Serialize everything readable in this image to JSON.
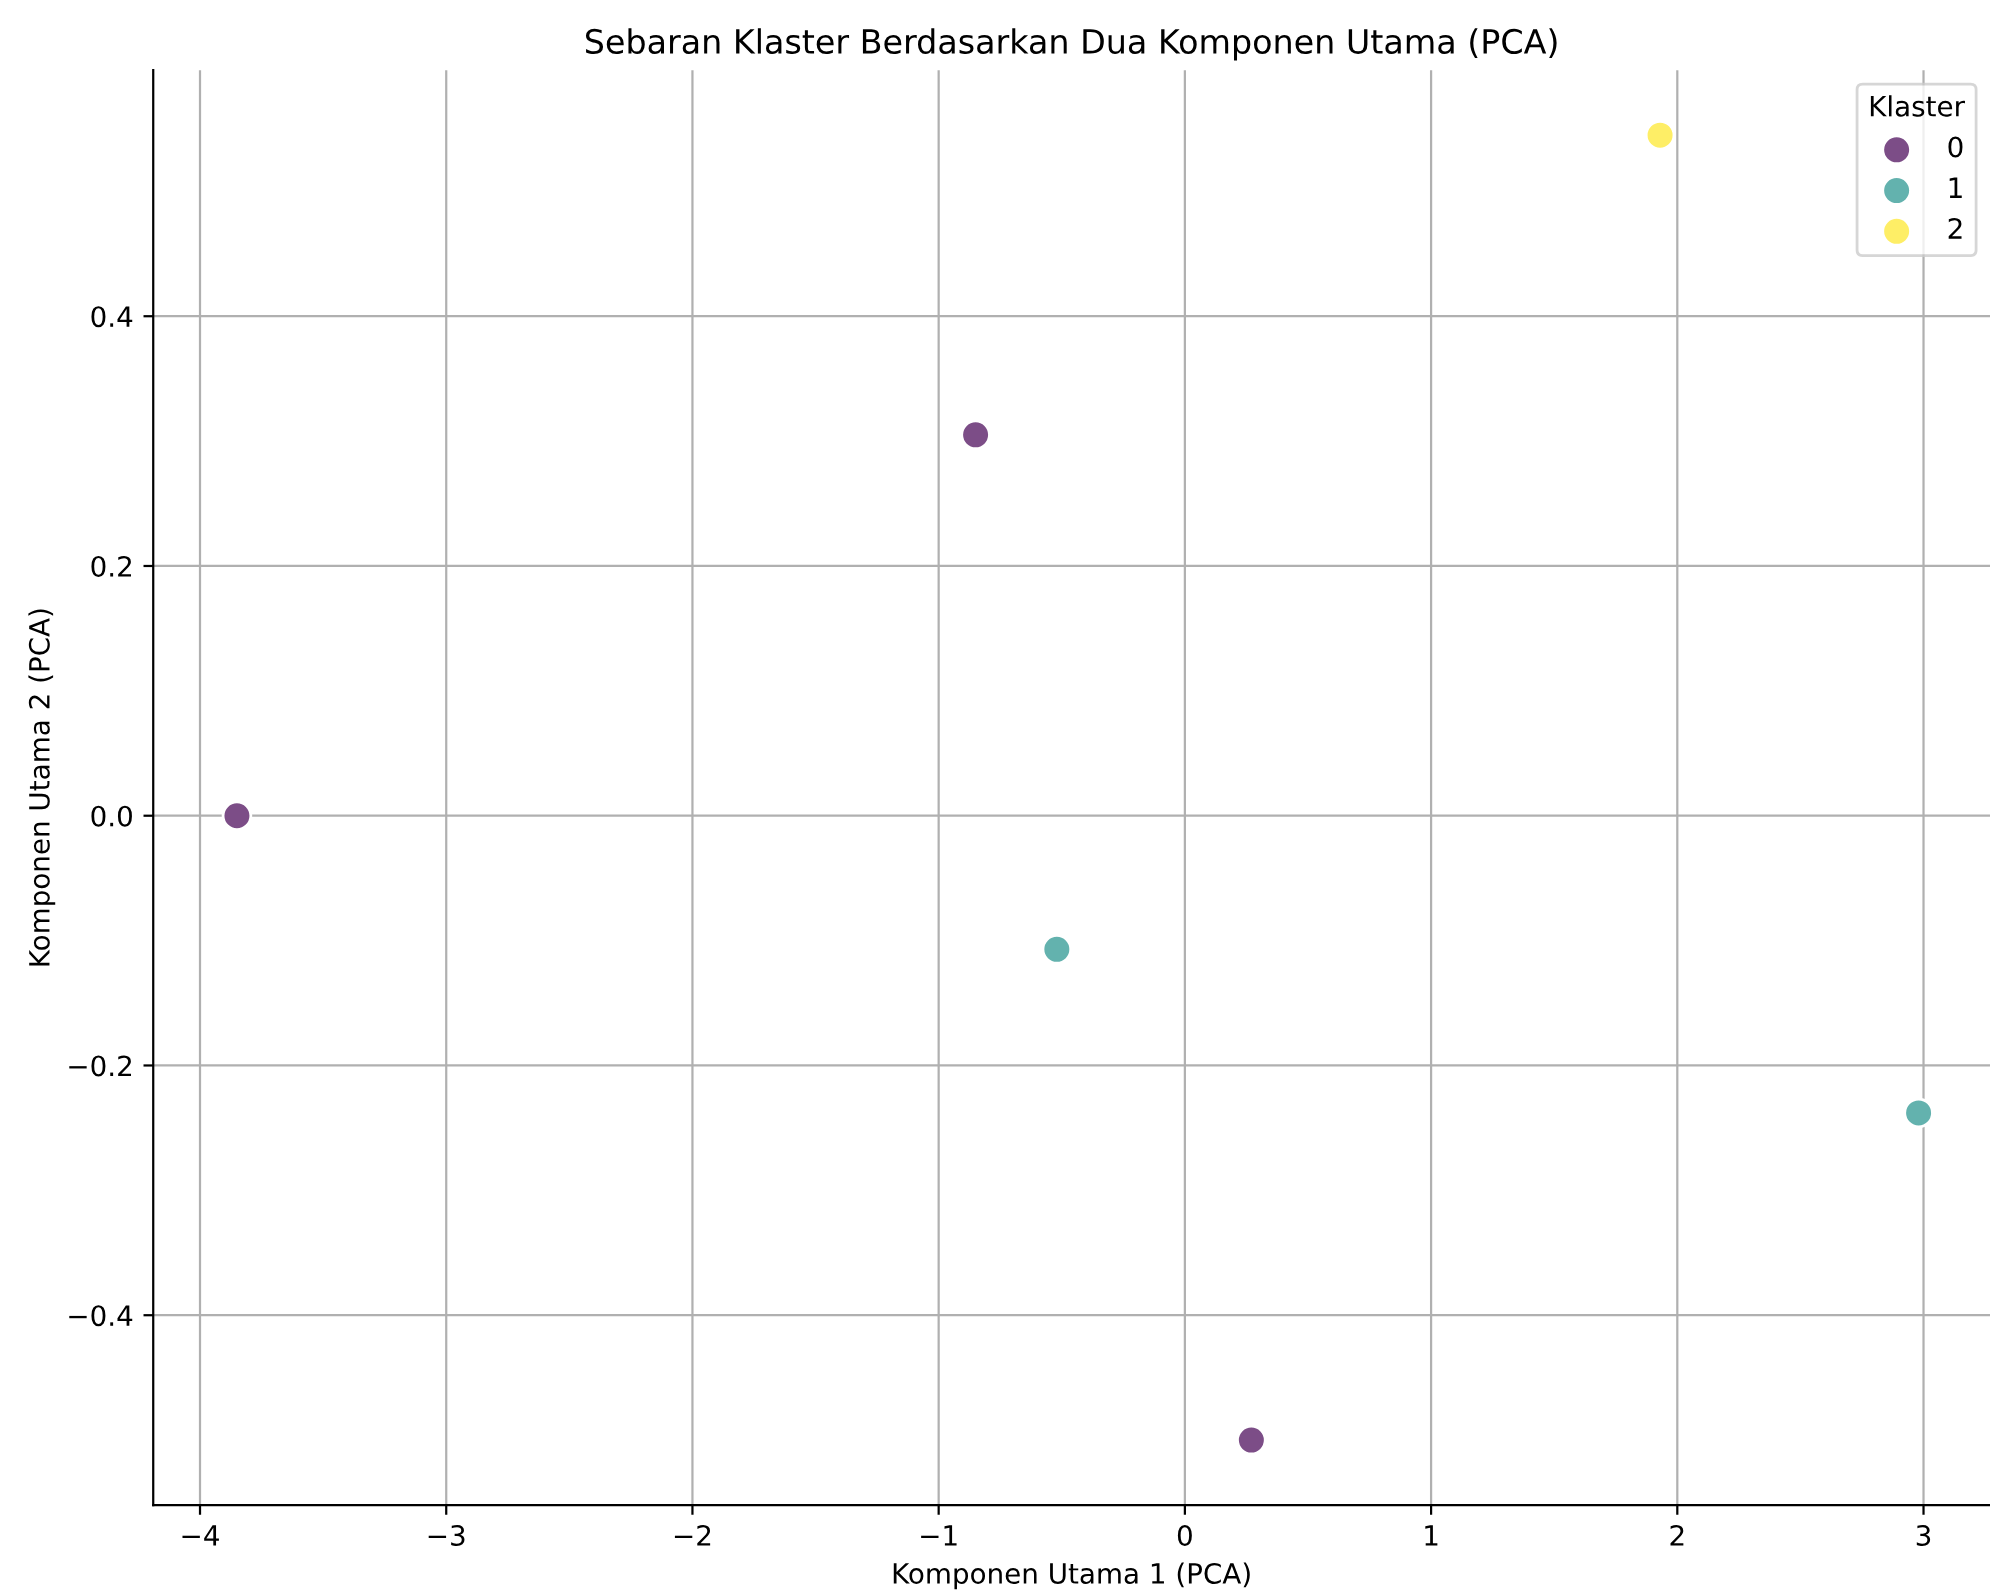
{
  "chart_data": {
    "type": "scatter",
    "title": "Sebaran Klaster Berdasarkan Dua Komponen Utama (PCA)",
    "xlabel": "Komponen Utama 1 (PCA)",
    "ylabel": "Komponen Utama 2 (PCA)",
    "legend_title": "Klaster",
    "series": [
      {
        "name": "0",
        "color": "#7c4d87",
        "x": [
          -3.85,
          -0.85,
          0.27
        ],
        "values": [
          0.0,
          0.305,
          -0.5
        ]
      },
      {
        "name": "1",
        "color": "#63b2ae",
        "x": [
          -0.52,
          2.98
        ],
        "values": [
          -0.107,
          -0.238
        ]
      },
      {
        "name": "2",
        "color": "#feee66",
        "x": [
          1.93
        ],
        "values": [
          0.545
        ]
      }
    ],
    "xlim": [
      -4.19,
      3.27
    ],
    "ylim": [
      -0.552,
      0.597
    ],
    "xticks": [
      {
        "value": -4,
        "label": "−4"
      },
      {
        "value": -3,
        "label": "−3"
      },
      {
        "value": -2,
        "label": "−2"
      },
      {
        "value": -1,
        "label": "−1"
      },
      0,
      1,
      2,
      3
    ],
    "yticks": [
      {
        "value": -0.4,
        "label": "−0.4"
      },
      {
        "value": -0.2,
        "label": "−0.2"
      },
      {
        "value": 0.0,
        "label": "0.0"
      },
      {
        "value": 0.2,
        "label": "0.2"
      },
      {
        "value": 0.4,
        "label": "0.4"
      }
    ],
    "grid": true,
    "legend": "top right",
    "marker": "circle"
  }
}
